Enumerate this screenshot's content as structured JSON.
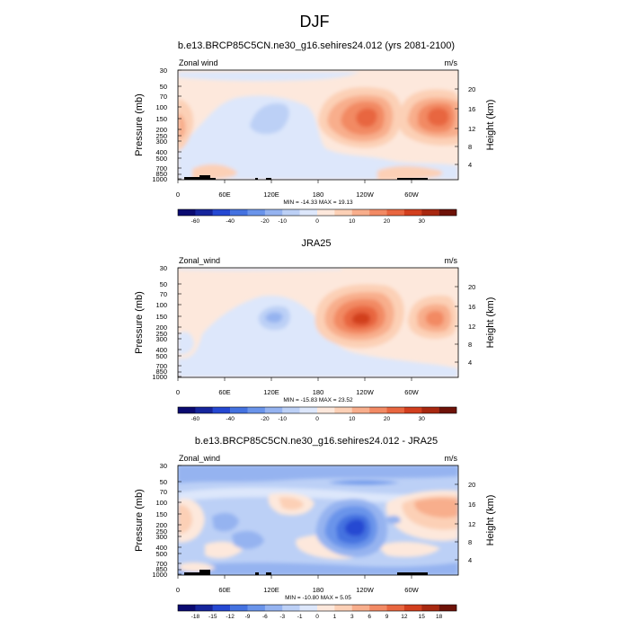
{
  "page": {
    "title": "DJF"
  },
  "chart_data": [
    {
      "type": "heatmap",
      "title": "b.e13.BRCP85C5CN.ne30_g16.sehires24.012 (yrs 2081-2100)",
      "left_label": "Zonal wind",
      "right_label": "m/s",
      "ylabel": "Pressure (mb)",
      "y2label": "Height (km)",
      "xticks": [
        "0",
        "60E",
        "120E",
        "180",
        "120W",
        "60W"
      ],
      "yticks": [
        "30",
        "50",
        "70",
        "100",
        "150",
        "200",
        "250",
        "300",
        "400",
        "500",
        "700",
        "850",
        "1000"
      ],
      "y2ticks": [
        "4",
        "8",
        "12",
        "16",
        "20"
      ],
      "stats": "MIN = -14.33  MAX =  19.13",
      "colorbar_labels": [
        "-60",
        "-40",
        "-20",
        "-10",
        "0",
        "10",
        "20",
        "30"
      ],
      "features": [
        {
          "lon": 120,
          "p": 120,
          "value": -8
        },
        {
          "lon": 215,
          "p": 140,
          "value": 19
        },
        {
          "lon": 290,
          "p": 130,
          "value": 18
        },
        {
          "lon": 0,
          "p": 200,
          "value": 5
        }
      ]
    },
    {
      "type": "heatmap",
      "title": "JRA25",
      "left_label": "Zonal_wind",
      "right_label": "m/s",
      "ylabel": "Pressure (mb)",
      "y2label": "Height (km)",
      "xticks": [
        "0",
        "60E",
        "120E",
        "180",
        "120W",
        "60W"
      ],
      "yticks": [
        "30",
        "50",
        "70",
        "100",
        "150",
        "200",
        "250",
        "300",
        "400",
        "500",
        "700",
        "850",
        "1000"
      ],
      "y2ticks": [
        "4",
        "8",
        "12",
        "16",
        "20"
      ],
      "stats": "MIN = -15.83  MAX =  23.52",
      "colorbar_labels": [
        "-60",
        "-40",
        "-20",
        "-10",
        "0",
        "10",
        "20",
        "30"
      ],
      "features": [
        {
          "lon": 112,
          "p": 160,
          "value": -12
        },
        {
          "lon": 200,
          "p": 160,
          "value": 23
        },
        {
          "lon": 292,
          "p": 160,
          "value": 18
        }
      ]
    },
    {
      "type": "heatmap",
      "title": "b.e13.BRCP85C5CN.ne30_g16.sehires24.012 - JRA25",
      "left_label": "Zonal_wind",
      "right_label": "m/s",
      "ylabel": "Pressure (mb)",
      "y2label": "Height (km)",
      "xticks": [
        "0",
        "60E",
        "120E",
        "180",
        "120W",
        "60W"
      ],
      "yticks": [
        "30",
        "50",
        "70",
        "100",
        "150",
        "200",
        "250",
        "300",
        "400",
        "500",
        "700",
        "850",
        "1000"
      ],
      "y2ticks": [
        "4",
        "8",
        "12",
        "16",
        "20"
      ],
      "stats": "MIN = -10.80  MAX =   5.05",
      "colorbar_labels": [
        "-18",
        "-15",
        "-12",
        "-9",
        "-6",
        "-3",
        "-1",
        "0",
        "1",
        "3",
        "6",
        "9",
        "12",
        "15",
        "18"
      ],
      "features": [
        {
          "lon": 198,
          "p": 210,
          "value": -10.8
        },
        {
          "lon": 130,
          "p": 400,
          "value": -6
        },
        {
          "lon": 310,
          "p": 100,
          "value": 5
        }
      ]
    }
  ],
  "colors": {
    "scale": [
      "#0a0a70",
      "#16259c",
      "#2548d2",
      "#4472e0",
      "#6a94ea",
      "#95b3f0",
      "#bcd0f6",
      "#dde7fb",
      "#fde8dc",
      "#fcd0b6",
      "#f8ae8c",
      "#f28a64",
      "#e86640",
      "#d23f1e",
      "#a82810",
      "#6e1208"
    ]
  }
}
